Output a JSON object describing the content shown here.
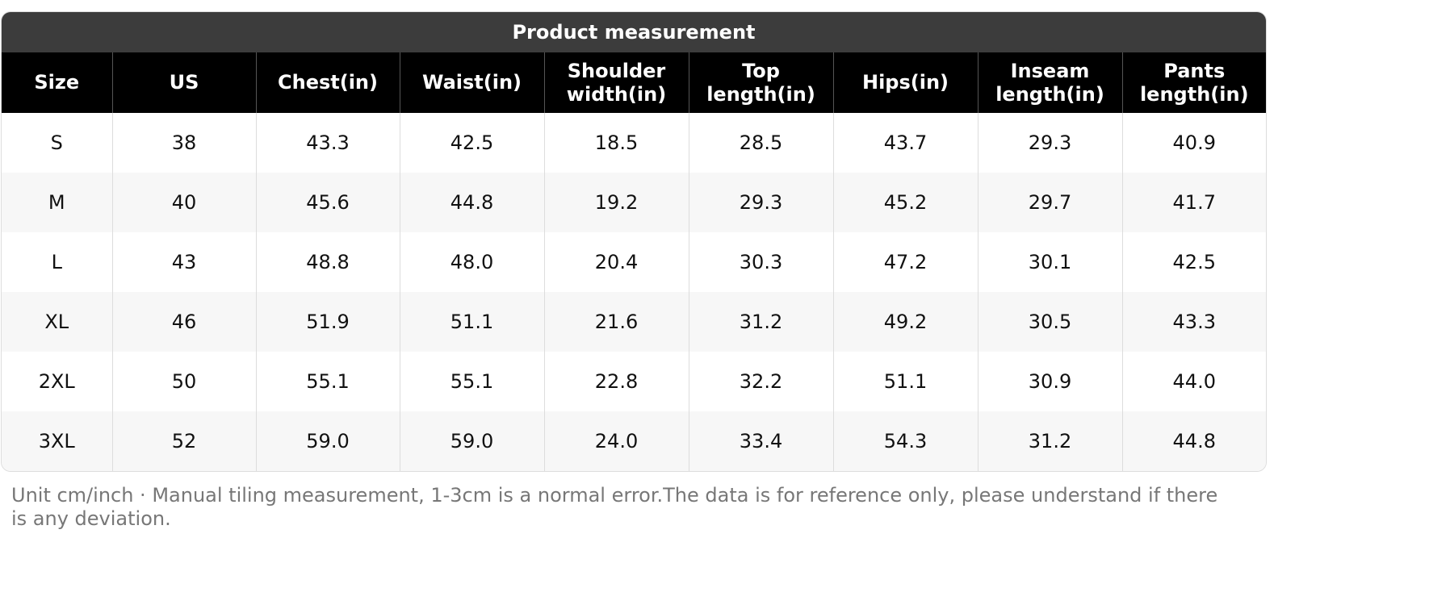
{
  "title": "Product measurement",
  "table": {
    "header": [
      "Size",
      "US",
      "Chest(in)",
      "Waist(in)",
      "Shoulder width(in)",
      "Top length(in)",
      "Hips(in)",
      "Inseam length(in)",
      "Pants length(in)"
    ],
    "rows": [
      [
        "S",
        "38",
        "43.3",
        "42.5",
        "18.5",
        "28.5",
        "43.7",
        "29.3",
        "40.9"
      ],
      [
        "M",
        "40",
        "45.6",
        "44.8",
        "19.2",
        "29.3",
        "45.2",
        "29.7",
        "41.7"
      ],
      [
        "L",
        "43",
        "48.8",
        "48.0",
        "20.4",
        "30.3",
        "47.2",
        "30.1",
        "42.5"
      ],
      [
        "XL",
        "46",
        "51.9",
        "51.1",
        "21.6",
        "31.2",
        "49.2",
        "30.5",
        "43.3"
      ],
      [
        "2XL",
        "50",
        "55.1",
        "55.1",
        "22.8",
        "32.2",
        "51.1",
        "30.9",
        "44.0"
      ],
      [
        "3XL",
        "52",
        "59.0",
        "59.0",
        "24.0",
        "33.4",
        "54.3",
        "31.2",
        "44.8"
      ]
    ]
  },
  "note": "Unit cm/inch · Manual tiling measurement, 1-3cm is a normal error.The data is for reference only, please understand if there is any deviation."
}
